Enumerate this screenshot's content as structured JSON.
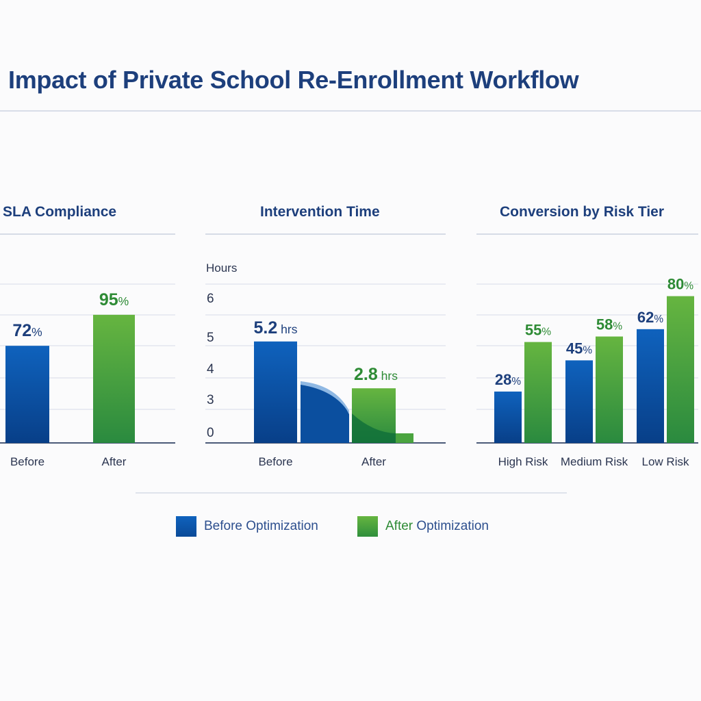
{
  "title": "Impact of Private School Re-Enrollment Workflow",
  "colors": {
    "before": "#0d57ad",
    "after": "#4aa43f",
    "before_text": "#1d3f7c",
    "after_text": "#2e8b35"
  },
  "legend": [
    {
      "label_prefix": "",
      "label": "Before Optimization",
      "color": "#0d57ad"
    },
    {
      "label_prefix": "After",
      "label": " Optimization",
      "color": "#4aa43f"
    }
  ],
  "chart_data": [
    {
      "type": "bar",
      "title": "SLA Compliance",
      "categories": [
        "Before",
        "After"
      ],
      "values": [
        72,
        95
      ],
      "data_labels": [
        {
          "num": "72",
          "unit": "%"
        },
        {
          "num": "95",
          "unit": "%"
        }
      ],
      "grid": true
    },
    {
      "type": "bar",
      "title": "Intervention Time",
      "ylabel": "Hours",
      "yticks": [
        "6",
        "5",
        "4",
        "3",
        "0"
      ],
      "categories": [
        "Before",
        "After"
      ],
      "values": [
        5.2,
        2.8
      ],
      "data_labels": [
        {
          "num": "5.2",
          "unit": " hrs"
        },
        {
          "num": "2.8",
          "unit": " hrs"
        }
      ],
      "grid": true
    },
    {
      "type": "bar",
      "title": "Conversion by Risk Tier",
      "categories": [
        "High Risk",
        "Medium Risk",
        "Low Risk"
      ],
      "series": [
        {
          "name": "Before Optimization",
          "values": [
            28,
            45,
            62
          ],
          "data_labels": [
            "28",
            "45",
            "62"
          ]
        },
        {
          "name": "After Optimization",
          "values": [
            55,
            58,
            80
          ],
          "data_labels": [
            "55",
            "58",
            "80"
          ]
        }
      ],
      "unit": "%",
      "grid": true
    }
  ]
}
